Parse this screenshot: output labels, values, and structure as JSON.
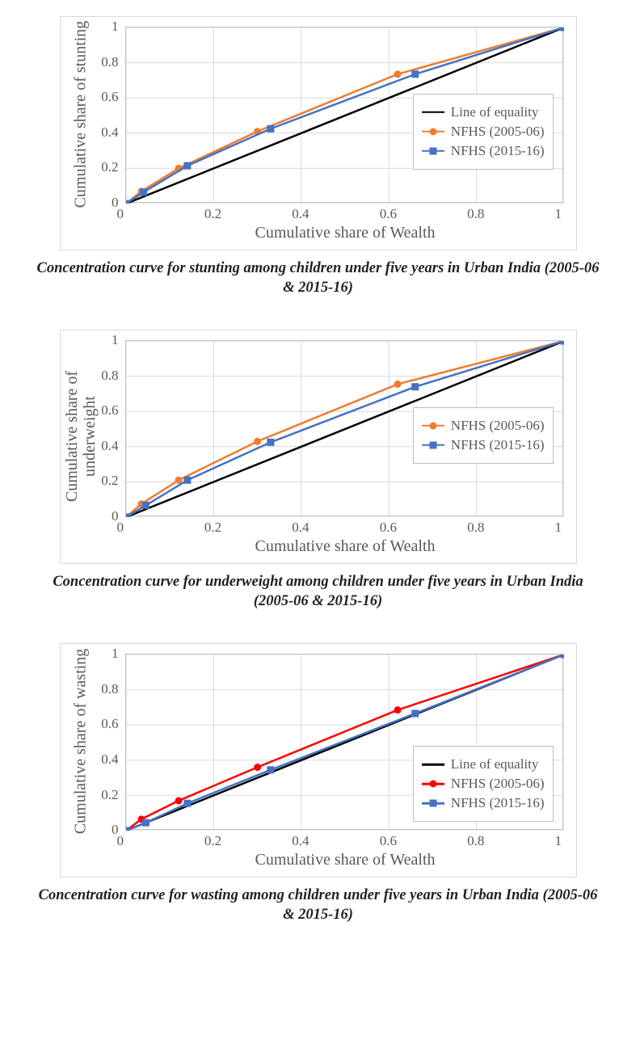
{
  "charts": [
    {
      "id": "stunting",
      "ylabel": "Cumulative share of stunting",
      "ylabel_multiline": false,
      "xlabel": "Cumulative share of Wealth",
      "caption": "Concentration curve for stunting among children under five years in Urban India (2005-06 & 2015-16)",
      "xlim": [
        0,
        1
      ],
      "ylim": [
        0,
        1
      ],
      "xticks": [
        0,
        0.2,
        0.4,
        0.6,
        0.8,
        1
      ],
      "yticks": [
        0,
        0.2,
        0.4,
        0.6,
        0.8,
        1
      ],
      "grid_color": "#d9d9d9",
      "background_color": "#ffffff",
      "axis_label_color": "#595959",
      "tick_label_color": "#595959",
      "label_fontsize": 20,
      "tick_fontsize": 17,
      "legend_pos": "right-mid",
      "legend": [
        {
          "type": "line",
          "label": "Line of equality",
          "color": "#000000",
          "line_width": 2.5
        },
        {
          "type": "circle",
          "label": "NFHS (2005-06)",
          "color": "#ed7d31",
          "line_width": 2.5,
          "marker_size": 9
        },
        {
          "type": "square",
          "label": "NFHS (2015-16)",
          "color": "#4472c4",
          "line_width": 2.5,
          "marker_size": 9
        }
      ],
      "series": [
        {
          "name": "equality",
          "type": "line",
          "color": "#000000",
          "line_width": 2.5,
          "points": [
            [
              0,
              0
            ],
            [
              1,
              1
            ]
          ]
        },
        {
          "name": "nfhs_2005_06",
          "type": "line-circle",
          "color": "#ed7d31",
          "line_width": 2.5,
          "marker_size": 9,
          "points": [
            [
              0,
              0
            ],
            [
              0.035,
              0.07
            ],
            [
              0.12,
              0.2
            ],
            [
              0.3,
              0.41
            ],
            [
              0.62,
              0.735
            ],
            [
              1,
              1
            ]
          ]
        },
        {
          "name": "nfhs_2015_16",
          "type": "line-square",
          "color": "#4472c4",
          "line_width": 2.5,
          "marker_size": 9,
          "points": [
            [
              0,
              0
            ],
            [
              0.04,
              0.065
            ],
            [
              0.14,
              0.215
            ],
            [
              0.33,
              0.425
            ],
            [
              0.66,
              0.735
            ],
            [
              1,
              1
            ]
          ]
        }
      ]
    },
    {
      "id": "underweight",
      "ylabel": "Cumulative share of underweight",
      "ylabel_multiline": true,
      "ylabel_line1": "Cumulative share of",
      "ylabel_line2": "underweight",
      "xlabel": "Cumulative share of Wealth",
      "caption": "Concentration curve for underweight among children under five years in Urban India (2005-06 & 2015-16)",
      "xlim": [
        0,
        1
      ],
      "ylim": [
        0,
        1
      ],
      "xticks": [
        0,
        0.2,
        0.4,
        0.6,
        0.8,
        1
      ],
      "yticks": [
        0,
        0.2,
        0.4,
        0.6,
        0.8,
        1
      ],
      "grid_color": "#d9d9d9",
      "background_color": "#ffffff",
      "axis_label_color": "#595959",
      "tick_label_color": "#595959",
      "label_fontsize": 20,
      "tick_fontsize": 17,
      "legend_pos": "right-mid",
      "legend": [
        {
          "type": "circle",
          "label": "NFHS (2005-06)",
          "color": "#ed7d31",
          "line_width": 2.5,
          "marker_size": 9
        },
        {
          "type": "square",
          "label": "NFHS (2015-16)",
          "color": "#4472c4",
          "line_width": 2.5,
          "marker_size": 9
        }
      ],
      "series": [
        {
          "name": "equality",
          "type": "line",
          "color": "#000000",
          "line_width": 2.5,
          "points": [
            [
              0,
              0
            ],
            [
              1,
              1
            ]
          ]
        },
        {
          "name": "nfhs_2005_06",
          "type": "line-circle",
          "color": "#ed7d31",
          "line_width": 2.5,
          "marker_size": 9,
          "points": [
            [
              0,
              0
            ],
            [
              0.035,
              0.075
            ],
            [
              0.12,
              0.21
            ],
            [
              0.3,
              0.43
            ],
            [
              0.62,
              0.755
            ],
            [
              1,
              1
            ]
          ]
        },
        {
          "name": "nfhs_2015_16",
          "type": "line-square",
          "color": "#4472c4",
          "line_width": 2.5,
          "marker_size": 9,
          "points": [
            [
              0,
              0
            ],
            [
              0.045,
              0.067
            ],
            [
              0.14,
              0.21
            ],
            [
              0.33,
              0.425
            ],
            [
              0.66,
              0.74
            ],
            [
              1,
              1
            ]
          ]
        }
      ]
    },
    {
      "id": "wasting",
      "ylabel": "Cumulative share of wasting",
      "ylabel_multiline": false,
      "xlabel": "Cumulative share of Wealth",
      "caption": "Concentration curve for wasting among children under five years in Urban India (2005-06 & 2015-16)",
      "xlim": [
        0,
        1
      ],
      "ylim": [
        0,
        1
      ],
      "xticks": [
        0,
        0.2,
        0.4,
        0.6,
        0.8,
        1
      ],
      "yticks": [
        0,
        0.2,
        0.4,
        0.6,
        0.8,
        1
      ],
      "grid_color": "#d9d9d9",
      "background_color": "#ffffff",
      "axis_label_color": "#595959",
      "tick_label_color": "#595959",
      "label_fontsize": 20,
      "tick_fontsize": 17,
      "legend_pos": "right-lower",
      "legend": [
        {
          "type": "line",
          "label": "Line of equality",
          "color": "#000000",
          "line_width": 2.5
        },
        {
          "type": "circle",
          "label": "NFHS (2005-06)",
          "color": "#ff0000",
          "line_width": 2.5,
          "marker_size": 9
        },
        {
          "type": "square",
          "label": "NFHS (2015-16)",
          "color": "#4472c4",
          "line_width": 2.5,
          "marker_size": 9
        }
      ],
      "series": [
        {
          "name": "equality",
          "type": "line",
          "color": "#000000",
          "line_width": 2.5,
          "points": [
            [
              0,
              0
            ],
            [
              1,
              1
            ]
          ]
        },
        {
          "name": "nfhs_2005_06",
          "type": "line-circle",
          "color": "#ff0000",
          "line_width": 2.5,
          "marker_size": 9,
          "points": [
            [
              0,
              0
            ],
            [
              0.035,
              0.065
            ],
            [
              0.12,
              0.17
            ],
            [
              0.3,
              0.36
            ],
            [
              0.62,
              0.685
            ],
            [
              1,
              1
            ]
          ]
        },
        {
          "name": "nfhs_2015_16",
          "type": "line-square",
          "color": "#4472c4",
          "line_width": 2.5,
          "marker_size": 9,
          "points": [
            [
              0,
              0
            ],
            [
              0.045,
              0.045
            ],
            [
              0.14,
              0.155
            ],
            [
              0.33,
              0.345
            ],
            [
              0.66,
              0.665
            ],
            [
              1,
              1
            ]
          ]
        }
      ]
    }
  ]
}
